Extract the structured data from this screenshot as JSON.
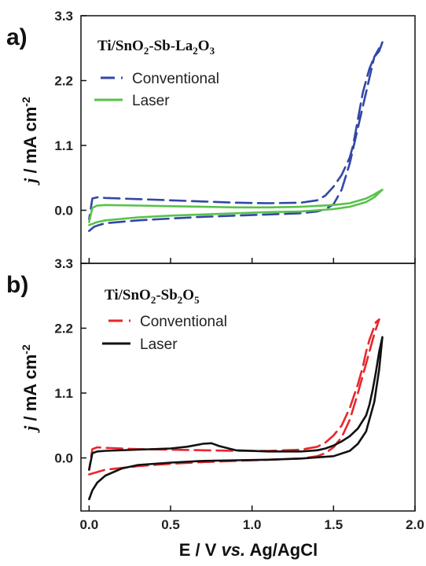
{
  "figure": {
    "xlabel_main": "E / V ",
    "xlabel_italic": "vs.",
    "xlabel_tail": " Ag/AgCl",
    "x_ticks": [
      "0.0",
      "0.5",
      "1.0",
      "1.5",
      "2.0"
    ]
  },
  "chart_data": [
    {
      "type": "line",
      "panel_label": "a)",
      "legend_title": {
        "base": "Ti/SnO",
        "s1": "2",
        "mid": "-Sb-La",
        "s2": "2",
        "mid2": "O",
        "s3": "3"
      },
      "ylabel_italic": "j",
      "ylabel_main": " / mA cm",
      "ylabel_sup": "-2",
      "xlim": [
        -0.05,
        2.0
      ],
      "ylim": [
        -0.9,
        3.3
      ],
      "y_ticks": [
        "0.0",
        "1.1",
        "2.2",
        "3.3"
      ],
      "legend_position": "top-left",
      "series": [
        {
          "name": "Conventional",
          "color": "#3346a8",
          "dashed": true,
          "forward_x": [
            0.0,
            0.03,
            0.06,
            0.1,
            0.3,
            0.5,
            0.7,
            0.9,
            1.1,
            1.3,
            1.4,
            1.45,
            1.5,
            1.55,
            1.6,
            1.65,
            1.7,
            1.75,
            1.8
          ],
          "forward_y": [
            -0.35,
            -0.28,
            -0.25,
            -0.22,
            -0.17,
            -0.14,
            -0.11,
            -0.09,
            -0.07,
            -0.05,
            -0.02,
            0.02,
            0.1,
            0.35,
            0.8,
            1.4,
            2.0,
            2.6,
            2.85
          ],
          "reverse_x": [
            1.8,
            1.78,
            1.75,
            1.72,
            1.7,
            1.68,
            1.66,
            1.64,
            1.62,
            1.6,
            1.55,
            1.5,
            1.45,
            1.4,
            1.3,
            1.1,
            0.9,
            0.7,
            0.5,
            0.3,
            0.1,
            0.05,
            0.02,
            0.0
          ],
          "reverse_y": [
            2.85,
            2.7,
            2.6,
            2.4,
            2.2,
            2.0,
            1.7,
            1.4,
            1.1,
            0.9,
            0.6,
            0.4,
            0.25,
            0.17,
            0.13,
            0.12,
            0.13,
            0.15,
            0.17,
            0.19,
            0.21,
            0.22,
            0.2,
            -0.15
          ]
        },
        {
          "name": "Laser",
          "color": "#58c24a",
          "dashed": false,
          "forward_x": [
            0.0,
            0.05,
            0.1,
            0.3,
            0.5,
            0.7,
            0.9,
            1.1,
            1.3,
            1.5,
            1.6,
            1.7,
            1.75,
            1.8
          ],
          "forward_y": [
            -0.25,
            -0.2,
            -0.17,
            -0.12,
            -0.09,
            -0.07,
            -0.05,
            -0.03,
            -0.02,
            0.02,
            0.06,
            0.14,
            0.22,
            0.35
          ],
          "reverse_x": [
            1.8,
            1.75,
            1.7,
            1.6,
            1.5,
            1.3,
            1.1,
            0.9,
            0.7,
            0.5,
            0.3,
            0.1,
            0.05,
            0.02,
            0.0
          ],
          "reverse_y": [
            0.35,
            0.27,
            0.2,
            0.12,
            0.09,
            0.06,
            0.05,
            0.05,
            0.06,
            0.07,
            0.08,
            0.09,
            0.08,
            0.04,
            -0.2
          ]
        }
      ]
    },
    {
      "type": "line",
      "panel_label": "b)",
      "legend_title": {
        "base": "Ti/SnO",
        "s1": "2",
        "mid": "-Sb",
        "s2": "2",
        "mid2": "O",
        "s3": "5"
      },
      "ylabel_italic": "j",
      "ylabel_main": " / mA cm",
      "ylabel_sup": "-2",
      "xlim": [
        -0.05,
        2.0
      ],
      "ylim": [
        -0.9,
        3.3
      ],
      "y_ticks": [
        "0.0",
        "1.1",
        "2.2",
        "3.3"
      ],
      "legend_position": "top-left",
      "series": [
        {
          "name": "Conventional",
          "color": "#e8262b",
          "dashed": true,
          "forward_x": [
            0.0,
            0.05,
            0.1,
            0.3,
            0.5,
            0.7,
            0.9,
            1.1,
            1.3,
            1.4,
            1.45,
            1.5,
            1.55,
            1.6,
            1.65,
            1.7,
            1.75,
            1.78
          ],
          "forward_y": [
            -0.28,
            -0.24,
            -0.2,
            -0.14,
            -0.1,
            -0.07,
            -0.05,
            -0.03,
            -0.01,
            0.03,
            0.08,
            0.18,
            0.35,
            0.65,
            1.1,
            1.6,
            2.1,
            2.35
          ],
          "reverse_x": [
            1.78,
            1.76,
            1.74,
            1.72,
            1.7,
            1.68,
            1.65,
            1.6,
            1.55,
            1.5,
            1.45,
            1.4,
            1.3,
            1.1,
            0.9,
            0.7,
            0.5,
            0.3,
            0.1,
            0.05,
            0.02,
            0.0
          ],
          "reverse_y": [
            2.35,
            2.3,
            2.15,
            2.0,
            1.8,
            1.55,
            1.25,
            0.85,
            0.55,
            0.38,
            0.26,
            0.19,
            0.14,
            0.12,
            0.12,
            0.13,
            0.14,
            0.15,
            0.17,
            0.18,
            0.15,
            -0.2
          ]
        },
        {
          "name": "Laser",
          "color": "#111111",
          "dashed": false,
          "forward_x": [
            0.0,
            0.02,
            0.05,
            0.1,
            0.2,
            0.3,
            0.5,
            0.7,
            0.9,
            1.1,
            1.3,
            1.5,
            1.6,
            1.65,
            1.7,
            1.75,
            1.78,
            1.8
          ],
          "forward_y": [
            -0.7,
            -0.55,
            -0.42,
            -0.3,
            -0.18,
            -0.12,
            -0.08,
            -0.05,
            -0.04,
            -0.03,
            -0.01,
            0.03,
            0.12,
            0.24,
            0.45,
            0.95,
            1.5,
            2.05
          ],
          "reverse_x": [
            1.8,
            1.78,
            1.76,
            1.74,
            1.72,
            1.7,
            1.65,
            1.6,
            1.55,
            1.5,
            1.45,
            1.4,
            1.3,
            1.1,
            0.9,
            0.8,
            0.75,
            0.7,
            0.6,
            0.5,
            0.3,
            0.1,
            0.05,
            0.02,
            0.0
          ],
          "reverse_y": [
            2.05,
            1.8,
            1.45,
            1.15,
            0.9,
            0.72,
            0.5,
            0.37,
            0.28,
            0.21,
            0.16,
            0.13,
            0.11,
            0.11,
            0.13,
            0.2,
            0.25,
            0.24,
            0.19,
            0.16,
            0.14,
            0.12,
            0.11,
            0.08,
            -0.2
          ]
        }
      ]
    }
  ]
}
